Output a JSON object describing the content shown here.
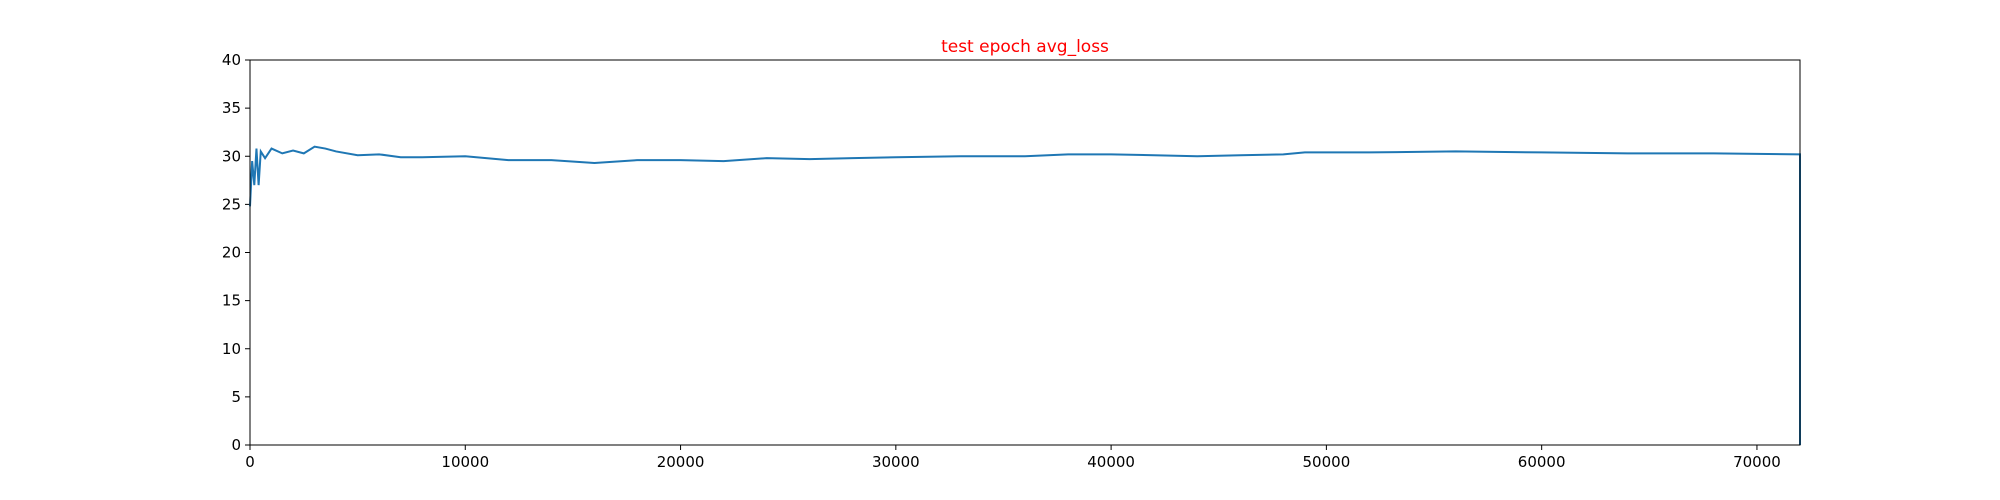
{
  "chart_data": {
    "type": "line",
    "title": "test epoch avg_loss",
    "title_color": "#ff0000",
    "x": [
      0,
      100,
      200,
      300,
      400,
      500,
      700,
      1000,
      1500,
      2000,
      2500,
      3000,
      3500,
      4000,
      5000,
      6000,
      7000,
      8000,
      10000,
      12000,
      14000,
      16000,
      18000,
      20000,
      22000,
      24000,
      26000,
      28000,
      30000,
      33000,
      36000,
      38000,
      40000,
      42000,
      44000,
      46000,
      48000,
      49000,
      52000,
      56000,
      60000,
      64000,
      68000,
      72000,
      72000
    ],
    "series": [
      {
        "color": "#1f77b4",
        "values": [
          24.8,
          29.5,
          27,
          30.8,
          27,
          30.5,
          29.8,
          30.8,
          30.3,
          30.6,
          30.3,
          31.0,
          30.8,
          30.5,
          30.1,
          30.2,
          29.9,
          29.9,
          30.0,
          29.6,
          29.6,
          29.3,
          29.6,
          29.6,
          29.5,
          29.8,
          29.7,
          29.8,
          29.9,
          30.0,
          30.0,
          30.2,
          30.2,
          30.1,
          30.0,
          30.1,
          30.2,
          30.4,
          30.4,
          30.5,
          30.4,
          30.3,
          30.3,
          30.2,
          0
        ]
      }
    ],
    "xlim": [
      0,
      72000
    ],
    "ylim": [
      0,
      40
    ],
    "xticks": [
      0,
      10000,
      20000,
      30000,
      40000,
      50000,
      60000,
      70000
    ],
    "yticks": [
      0,
      5,
      10,
      15,
      20,
      25,
      30,
      35,
      40
    ],
    "grid": false
  }
}
